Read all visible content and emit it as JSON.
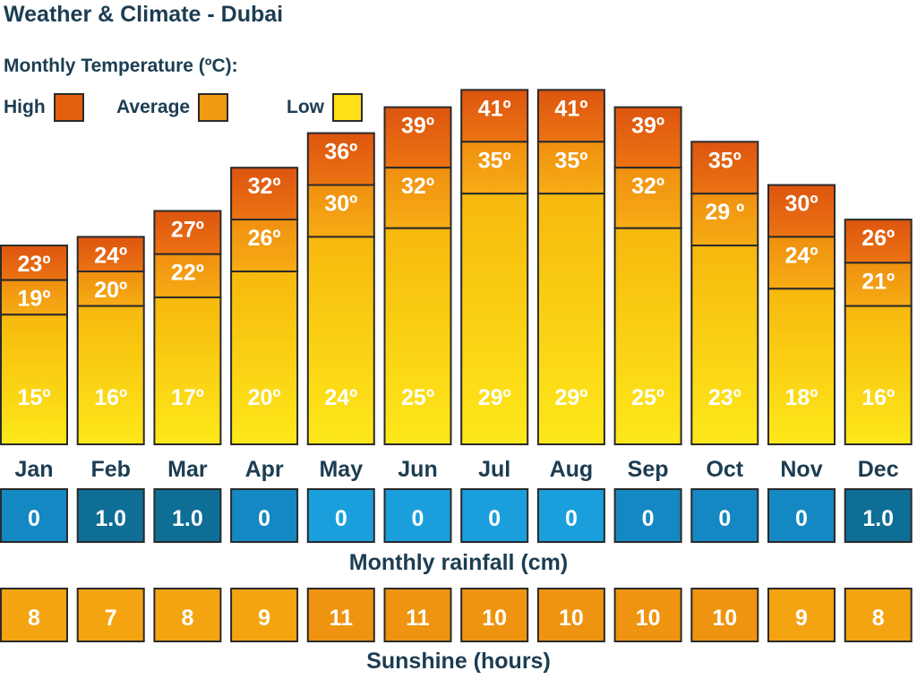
{
  "title": "Weather & Climate - Dubai",
  "temperature_heading": "Monthly Temperature (ºC):",
  "legend": [
    {
      "label": "High",
      "color": "#e25f10"
    },
    {
      "label": "Average",
      "color": "#f19a12"
    },
    {
      "label": "Low",
      "color": "#fde017"
    }
  ],
  "rainfall_label": "Monthly rainfall (cm)",
  "sunshine_label": "Sunshine (hours)",
  "colors": {
    "high": "#e25f10",
    "average": "#f19a12",
    "low": "#fde017",
    "rain_dark": "#0f6e96",
    "rain_light": "#1a9fdc",
    "sun": "#f3a410",
    "text_dark": "#1c3d52"
  },
  "chart_data": {
    "type": "bar",
    "title": "Weather & Climate - Dubai",
    "categories": [
      "Jan",
      "Feb",
      "Mar",
      "Apr",
      "May",
      "Jun",
      "Jul",
      "Aug",
      "Sep",
      "Oct",
      "Nov",
      "Dec"
    ],
    "series": [
      {
        "name": "High",
        "values": [
          23,
          24,
          27,
          32,
          36,
          39,
          41,
          41,
          39,
          35,
          30,
          26
        ],
        "labels": [
          "23º",
          "24º",
          "27º",
          "32º",
          "36º",
          "39º",
          "41º",
          "41º",
          "39º",
          "35º",
          "30º",
          "26º"
        ]
      },
      {
        "name": "Average",
        "values": [
          19,
          20,
          22,
          26,
          30,
          32,
          35,
          35,
          32,
          29,
          24,
          21
        ],
        "labels": [
          "19º",
          "20º",
          "22º",
          "26º",
          "30º",
          "32º",
          "35º",
          "35º",
          "32º",
          "29 º",
          "24º",
          "21º"
        ]
      },
      {
        "name": "Low",
        "values": [
          15,
          16,
          17,
          20,
          24,
          25,
          29,
          29,
          25,
          23,
          18,
          16
        ],
        "labels": [
          "15º",
          "16º",
          "17º",
          "20º",
          "24º",
          "25º",
          "29º",
          "29º",
          "25º",
          "23º",
          "18º",
          "16º"
        ]
      }
    ],
    "rainfall": {
      "name": "Monthly rainfall (cm)",
      "labels": [
        "0",
        "1.0",
        "1.0",
        "0",
        "0",
        "0",
        "0",
        "0",
        "0",
        "0",
        "0",
        "1.0"
      ]
    },
    "sunshine": {
      "name": "Sunshine (hours)",
      "labels": [
        "8",
        "7",
        "8",
        "9",
        "11",
        "11",
        "10",
        "10",
        "10",
        "10",
        "9",
        "8"
      ]
    }
  }
}
